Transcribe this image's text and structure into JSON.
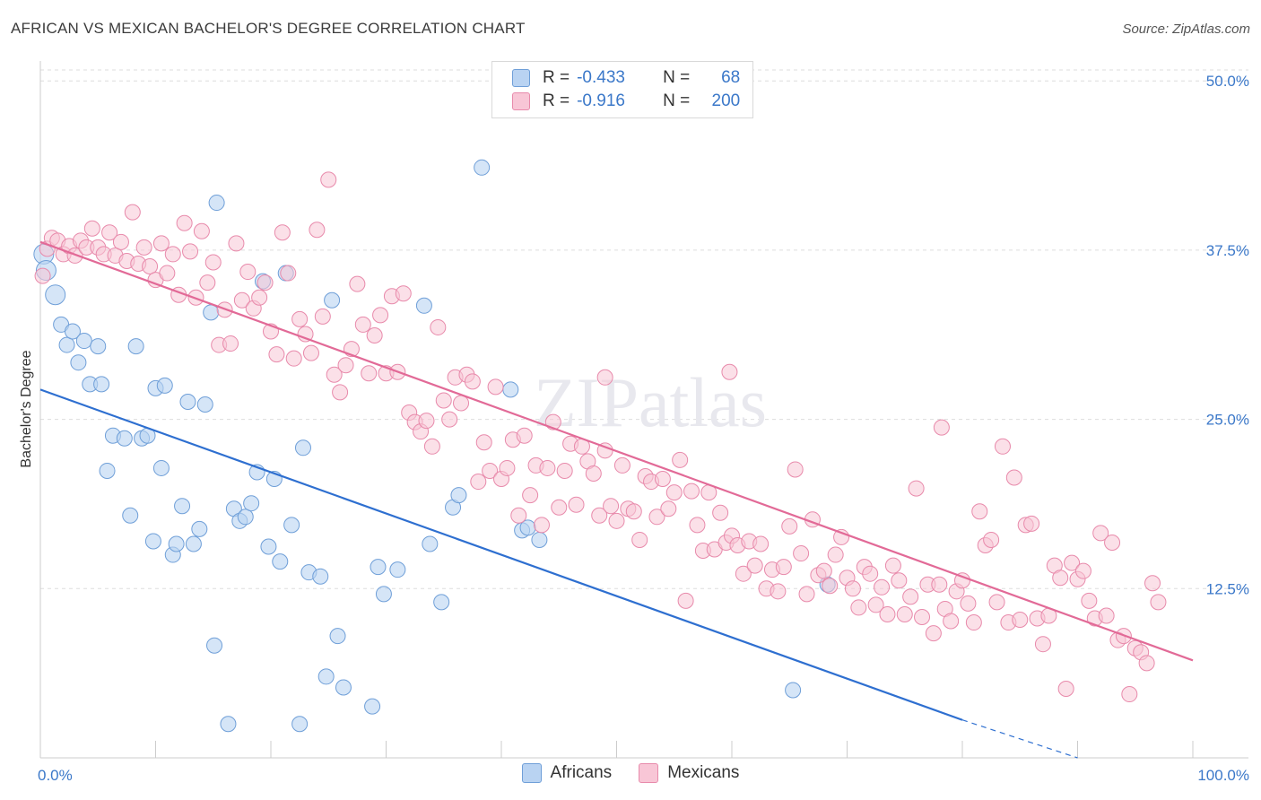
{
  "title": "AFRICAN VS MEXICAN BACHELOR'S DEGREE CORRELATION CHART",
  "source": "Source: ZipAtlas.com",
  "watermark": "ZIPatlas",
  "legend": {
    "rows": [
      {
        "r_label": "R =",
        "r_value": "-0.433",
        "n_label": "N =",
        "n_value": "68"
      },
      {
        "r_label": "R =",
        "r_value": "-0.916",
        "n_label": "N =",
        "n_value": "200"
      }
    ]
  },
  "bottom_legend": [
    "Africans",
    "Mexicans"
  ],
  "colors": {
    "africans_fill": "#b9d3f2",
    "africans_stroke": "#6f9fd8",
    "africans_line": "#2e6fd0",
    "mexicans_fill": "#f8c6d6",
    "mexicans_stroke": "#e88aab",
    "mexicans_line": "#e26a97",
    "tick_text": "#3b78c9",
    "grid": "#dddddd"
  },
  "chart_data": {
    "type": "scatter",
    "title": "AFRICAN VS MEXICAN BACHELOR'S DEGREE CORRELATION CHART",
    "xlabel": "",
    "ylabel": "Bachelor's Degree",
    "xlim": [
      0,
      100
    ],
    "ylim": [
      0,
      52
    ],
    "x_tick_labels": [
      "0.0%",
      "100.0%"
    ],
    "y_ticks": [
      12.5,
      25.0,
      37.5,
      50.0
    ],
    "y_tick_labels": [
      "12.5%",
      "25.0%",
      "37.5%",
      "50.0%"
    ],
    "grid": true,
    "legend_position": "top-center",
    "series": [
      {
        "name": "Africans",
        "r": -0.433,
        "n": 68,
        "trend": {
          "x": [
            0,
            80
          ],
          "y": [
            27.2,
            2.8
          ],
          "dashed_to": [
            90,
            0
          ]
        },
        "points": [
          [
            0.3,
            37.2
          ],
          [
            0.5,
            36
          ],
          [
            1.3,
            34.2
          ],
          [
            1.8,
            32
          ],
          [
            2.3,
            30.5
          ],
          [
            2.8,
            31.5
          ],
          [
            3.3,
            29.2
          ],
          [
            3.8,
            30.8
          ],
          [
            4.3,
            27.6
          ],
          [
            5,
            30.4
          ],
          [
            5.3,
            27.6
          ],
          [
            5.8,
            21.2
          ],
          [
            6.3,
            23.8
          ],
          [
            7.3,
            23.6
          ],
          [
            7.8,
            17.9
          ],
          [
            8.3,
            30.4
          ],
          [
            8.8,
            23.6
          ],
          [
            9.3,
            23.8
          ],
          [
            9.8,
            16
          ],
          [
            10,
            27.3
          ],
          [
            10.5,
            21.4
          ],
          [
            10.8,
            27.5
          ],
          [
            11.5,
            15
          ],
          [
            11.8,
            15.8
          ],
          [
            12.3,
            18.6
          ],
          [
            12.8,
            26.3
          ],
          [
            13.3,
            15.8
          ],
          [
            13.8,
            16.9
          ],
          [
            14.3,
            26.1
          ],
          [
            14.8,
            32.9
          ],
          [
            15.3,
            41
          ],
          [
            15.1,
            8.3
          ],
          [
            16.3,
            2.5
          ],
          [
            16.8,
            18.4
          ],
          [
            17.3,
            17.5
          ],
          [
            17.8,
            17.8
          ],
          [
            18.3,
            18.8
          ],
          [
            18.8,
            21.1
          ],
          [
            19.3,
            35.2
          ],
          [
            19.8,
            15.6
          ],
          [
            20.3,
            20.6
          ],
          [
            20.8,
            14.5
          ],
          [
            21.3,
            35.8
          ],
          [
            21.8,
            17.2
          ],
          [
            22.5,
            2.5
          ],
          [
            22.8,
            22.9
          ],
          [
            23.3,
            13.7
          ],
          [
            24.3,
            13.4
          ],
          [
            24.8,
            6
          ],
          [
            25.3,
            33.8
          ],
          [
            25.8,
            9
          ],
          [
            26.3,
            5.2
          ],
          [
            28.8,
            3.8
          ],
          [
            29.3,
            14.1
          ],
          [
            29.8,
            12.1
          ],
          [
            31,
            13.9
          ],
          [
            33.3,
            33.4
          ],
          [
            33.8,
            15.8
          ],
          [
            34.8,
            11.5
          ],
          [
            35.8,
            18.5
          ],
          [
            36.3,
            19.4
          ],
          [
            38.3,
            43.6
          ],
          [
            40.8,
            27.2
          ],
          [
            41.8,
            16.8
          ],
          [
            42.3,
            17
          ],
          [
            43.3,
            16.1
          ],
          [
            65.3,
            5
          ],
          [
            68.3,
            12.8
          ]
        ]
      },
      {
        "name": "Mexicans",
        "r": -0.916,
        "n": 200,
        "trend": {
          "x": [
            0,
            100
          ],
          "y": [
            38.1,
            7.2
          ]
        },
        "points": [
          [
            0.2,
            35.6
          ],
          [
            0.6,
            37.6
          ],
          [
            1,
            38.4
          ],
          [
            1.5,
            38.2
          ],
          [
            2,
            37.2
          ],
          [
            2.5,
            37.8
          ],
          [
            3,
            37.1
          ],
          [
            3.5,
            38.2
          ],
          [
            4,
            37.7
          ],
          [
            4.5,
            39.1
          ],
          [
            5,
            37.7
          ],
          [
            5.5,
            37.2
          ],
          [
            6,
            38.8
          ],
          [
            6.5,
            37.1
          ],
          [
            7,
            38.1
          ],
          [
            7.5,
            36.7
          ],
          [
            8,
            40.3
          ],
          [
            8.5,
            36.5
          ],
          [
            9,
            37.7
          ],
          [
            9.5,
            36.3
          ],
          [
            10,
            35.3
          ],
          [
            10.5,
            38
          ],
          [
            11,
            35.8
          ],
          [
            11.5,
            37.2
          ],
          [
            12,
            34.2
          ],
          [
            12.5,
            39.5
          ],
          [
            13,
            37.4
          ],
          [
            13.5,
            34
          ],
          [
            14,
            38.9
          ],
          [
            14.5,
            35.1
          ],
          [
            15,
            36.6
          ],
          [
            15.5,
            30.5
          ],
          [
            16,
            33.1
          ],
          [
            16.5,
            30.6
          ],
          [
            17,
            38
          ],
          [
            17.5,
            33.8
          ],
          [
            18,
            35.9
          ],
          [
            18.5,
            33.2
          ],
          [
            19,
            34
          ],
          [
            19.5,
            35.1
          ],
          [
            20,
            31.5
          ],
          [
            20.5,
            29.8
          ],
          [
            21,
            38.8
          ],
          [
            21.5,
            35.8
          ],
          [
            22,
            29.5
          ],
          [
            22.5,
            32.4
          ],
          [
            23,
            31.3
          ],
          [
            23.5,
            29.9
          ],
          [
            24,
            39
          ],
          [
            24.5,
            32.6
          ],
          [
            25,
            42.7
          ],
          [
            25.5,
            28.3
          ],
          [
            26,
            27
          ],
          [
            26.5,
            29
          ],
          [
            27,
            30.2
          ],
          [
            27.5,
            35
          ],
          [
            28,
            32
          ],
          [
            28.5,
            28.4
          ],
          [
            29,
            31.2
          ],
          [
            29.5,
            32.7
          ],
          [
            30,
            28.4
          ],
          [
            30.5,
            34.1
          ],
          [
            31,
            28.5
          ],
          [
            31.5,
            34.3
          ],
          [
            32,
            25.5
          ],
          [
            32.5,
            24.8
          ],
          [
            33,
            24.1
          ],
          [
            33.5,
            24.9
          ],
          [
            34,
            23
          ],
          [
            34.5,
            31.8
          ],
          [
            35,
            26.4
          ],
          [
            35.5,
            25
          ],
          [
            36,
            28.1
          ],
          [
            36.5,
            26.2
          ],
          [
            37,
            28.3
          ],
          [
            37.5,
            27.8
          ],
          [
            38,
            20.4
          ],
          [
            38.5,
            23.3
          ],
          [
            39,
            21.2
          ],
          [
            39.5,
            27.4
          ],
          [
            40,
            20.6
          ],
          [
            40.5,
            21.4
          ],
          [
            41,
            23.5
          ],
          [
            41.5,
            17.9
          ],
          [
            42,
            23.8
          ],
          [
            42.5,
            19.4
          ],
          [
            43,
            21.6
          ],
          [
            43.5,
            17.2
          ],
          [
            44,
            21.4
          ],
          [
            44.5,
            24.8
          ],
          [
            45,
            18.5
          ],
          [
            45.5,
            21.2
          ],
          [
            46,
            23.2
          ],
          [
            46.5,
            18.7
          ],
          [
            47,
            23
          ],
          [
            47.5,
            21.9
          ],
          [
            48,
            21
          ],
          [
            48.5,
            17.9
          ],
          [
            49,
            22.7
          ],
          [
            49.5,
            18.6
          ],
          [
            50,
            17.5
          ],
          [
            50.5,
            21.6
          ],
          [
            51,
            18.4
          ],
          [
            51.5,
            18.2
          ],
          [
            52,
            16.1
          ],
          [
            52.5,
            20.8
          ],
          [
            53,
            20.4
          ],
          [
            53.5,
            17.8
          ],
          [
            54,
            20.6
          ],
          [
            54.5,
            18.4
          ],
          [
            55,
            19.6
          ],
          [
            55.5,
            22
          ],
          [
            56,
            11.6
          ],
          [
            56.5,
            19.7
          ],
          [
            57,
            17.2
          ],
          [
            57.5,
            15.3
          ],
          [
            58,
            19.6
          ],
          [
            58.5,
            15.4
          ],
          [
            59,
            18.1
          ],
          [
            59.5,
            15.9
          ],
          [
            60,
            16.4
          ],
          [
            60.5,
            15.7
          ],
          [
            61,
            13.6
          ],
          [
            61.5,
            16
          ],
          [
            62,
            14.2
          ],
          [
            62.5,
            15.8
          ],
          [
            63,
            12.5
          ],
          [
            63.5,
            13.9
          ],
          [
            64,
            12.3
          ],
          [
            64.5,
            14.1
          ],
          [
            65,
            17.1
          ],
          [
            65.5,
            21.3
          ],
          [
            66,
            15.1
          ],
          [
            66.5,
            12.1
          ],
          [
            67,
            17.6
          ],
          [
            67.5,
            13.5
          ],
          [
            68,
            13.8
          ],
          [
            68.5,
            12.7
          ],
          [
            69,
            15
          ],
          [
            69.5,
            16.3
          ],
          [
            70,
            13.3
          ],
          [
            70.5,
            12.5
          ],
          [
            71,
            11.1
          ],
          [
            71.5,
            14.1
          ],
          [
            72,
            13.6
          ],
          [
            72.5,
            11.3
          ],
          [
            73,
            12.6
          ],
          [
            73.5,
            10.6
          ],
          [
            74,
            14.2
          ],
          [
            74.5,
            13.1
          ],
          [
            75,
            10.6
          ],
          [
            75.5,
            11.9
          ],
          [
            76,
            19.9
          ],
          [
            76.5,
            10.4
          ],
          [
            77,
            12.8
          ],
          [
            77.5,
            9.2
          ],
          [
            78,
            12.8
          ],
          [
            78.5,
            11
          ],
          [
            79,
            10.1
          ],
          [
            79.5,
            12.3
          ],
          [
            80,
            13.1
          ],
          [
            80.5,
            11.4
          ],
          [
            81,
            10
          ],
          [
            81.5,
            18.2
          ],
          [
            82,
            15.7
          ],
          [
            82.5,
            16.1
          ],
          [
            83,
            11.5
          ],
          [
            83.5,
            23
          ],
          [
            84,
            10
          ],
          [
            84.5,
            20.7
          ],
          [
            85,
            10.2
          ],
          [
            85.5,
            17.2
          ],
          [
            86,
            17.3
          ],
          [
            86.5,
            10.3
          ],
          [
            87,
            8.4
          ],
          [
            87.5,
            10.5
          ],
          [
            88,
            14.2
          ],
          [
            88.5,
            13.3
          ],
          [
            89,
            5.1
          ],
          [
            89.5,
            14.4
          ],
          [
            90,
            13.2
          ],
          [
            90.5,
            13.8
          ],
          [
            91,
            11.6
          ],
          [
            91.5,
            10.3
          ],
          [
            92,
            16.6
          ],
          [
            92.5,
            10.5
          ],
          [
            93,
            15.9
          ],
          [
            93.5,
            8.7
          ],
          [
            94,
            9
          ],
          [
            94.5,
            4.7
          ],
          [
            95,
            8.1
          ],
          [
            95.5,
            7.8
          ],
          [
            96,
            7
          ],
          [
            96.5,
            12.9
          ],
          [
            97,
            11.5
          ],
          [
            59.8,
            28.5
          ],
          [
            49,
            28.1
          ],
          [
            78.2,
            24.4
          ]
        ]
      }
    ]
  }
}
